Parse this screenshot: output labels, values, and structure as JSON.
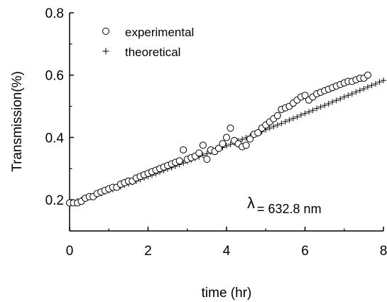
{
  "chart_data": {
    "type": "scatter",
    "xlabel": "time (hr)",
    "ylabel": "Transmission(%)",
    "xlim": [
      0,
      8
    ],
    "ylim": [
      0.1,
      0.8
    ],
    "x_ticks": [
      0,
      2,
      4,
      6,
      8
    ],
    "x_tick_labels": [
      "0",
      "2",
      "4",
      "6",
      "8"
    ],
    "y_ticks": [
      0.2,
      0.4,
      0.6,
      0.8
    ],
    "y_tick_labels": [
      "0.2",
      "0.4",
      "0.6",
      "0.8"
    ],
    "grid": false,
    "legend_position": "top-left",
    "annotation": {
      "symbol": "λ",
      "text": "= 632.8 nm"
    },
    "series": [
      {
        "name": "experimental",
        "marker": "open-circle",
        "color": "#000000",
        "points": [
          [
            0.0,
            0.19
          ],
          [
            0.1,
            0.19
          ],
          [
            0.2,
            0.19
          ],
          [
            0.3,
            0.195
          ],
          [
            0.4,
            0.205
          ],
          [
            0.5,
            0.21
          ],
          [
            0.6,
            0.21
          ],
          [
            0.7,
            0.22
          ],
          [
            0.8,
            0.225
          ],
          [
            0.9,
            0.23
          ],
          [
            1.0,
            0.235
          ],
          [
            1.1,
            0.24
          ],
          [
            1.2,
            0.24
          ],
          [
            1.3,
            0.25
          ],
          [
            1.4,
            0.255
          ],
          [
            1.5,
            0.26
          ],
          [
            1.6,
            0.26
          ],
          [
            1.7,
            0.27
          ],
          [
            1.8,
            0.275
          ],
          [
            1.9,
            0.28
          ],
          [
            2.0,
            0.285
          ],
          [
            2.1,
            0.29
          ],
          [
            2.2,
            0.295
          ],
          [
            2.3,
            0.3
          ],
          [
            2.4,
            0.305
          ],
          [
            2.5,
            0.31
          ],
          [
            2.6,
            0.315
          ],
          [
            2.7,
            0.32
          ],
          [
            2.8,
            0.325
          ],
          [
            2.9,
            0.36
          ],
          [
            3.0,
            0.33
          ],
          [
            3.1,
            0.335
          ],
          [
            3.2,
            0.34
          ],
          [
            3.3,
            0.35
          ],
          [
            3.4,
            0.375
          ],
          [
            3.5,
            0.33
          ],
          [
            3.6,
            0.36
          ],
          [
            3.7,
            0.355
          ],
          [
            3.8,
            0.365
          ],
          [
            3.9,
            0.38
          ],
          [
            4.0,
            0.4
          ],
          [
            4.1,
            0.43
          ],
          [
            4.2,
            0.39
          ],
          [
            4.3,
            0.38
          ],
          [
            4.4,
            0.37
          ],
          [
            4.5,
            0.375
          ],
          [
            4.6,
            0.395
          ],
          [
            4.7,
            0.41
          ],
          [
            4.8,
            0.415
          ],
          [
            4.9,
            0.43
          ],
          [
            5.0,
            0.44
          ],
          [
            5.1,
            0.45
          ],
          [
            5.2,
            0.46
          ],
          [
            5.3,
            0.47
          ],
          [
            5.4,
            0.49
          ],
          [
            5.5,
            0.495
          ],
          [
            5.6,
            0.5
          ],
          [
            5.7,
            0.51
          ],
          [
            5.8,
            0.52
          ],
          [
            5.9,
            0.53
          ],
          [
            6.0,
            0.535
          ],
          [
            6.1,
            0.52
          ],
          [
            6.2,
            0.53
          ],
          [
            6.3,
            0.54
          ],
          [
            6.4,
            0.545
          ],
          [
            6.5,
            0.55
          ],
          [
            6.6,
            0.555
          ],
          [
            6.7,
            0.56
          ],
          [
            6.8,
            0.565
          ],
          [
            6.9,
            0.57
          ],
          [
            7.0,
            0.575
          ],
          [
            7.1,
            0.58
          ],
          [
            7.2,
            0.58
          ],
          [
            7.3,
            0.585
          ],
          [
            7.4,
            0.59
          ],
          [
            7.5,
            0.59
          ],
          [
            7.6,
            0.6
          ]
        ]
      },
      {
        "name": "theoretical",
        "marker": "plus",
        "color": "#000000",
        "points": [
          [
            0.0,
            0.19
          ],
          [
            0.1,
            0.193
          ],
          [
            0.2,
            0.197
          ],
          [
            0.3,
            0.2
          ],
          [
            0.4,
            0.204
          ],
          [
            0.5,
            0.208
          ],
          [
            0.6,
            0.212
          ],
          [
            0.7,
            0.216
          ],
          [
            0.8,
            0.22
          ],
          [
            0.9,
            0.225
          ],
          [
            1.0,
            0.229
          ],
          [
            1.1,
            0.233
          ],
          [
            1.2,
            0.238
          ],
          [
            1.3,
            0.242
          ],
          [
            1.4,
            0.247
          ],
          [
            1.5,
            0.251
          ],
          [
            1.6,
            0.256
          ],
          [
            1.7,
            0.26
          ],
          [
            1.8,
            0.265
          ],
          [
            1.9,
            0.27
          ],
          [
            2.0,
            0.275
          ],
          [
            2.1,
            0.279
          ],
          [
            2.2,
            0.284
          ],
          [
            2.3,
            0.289
          ],
          [
            2.4,
            0.294
          ],
          [
            2.5,
            0.299
          ],
          [
            2.6,
            0.303
          ],
          [
            2.7,
            0.308
          ],
          [
            2.8,
            0.313
          ],
          [
            2.9,
            0.318
          ],
          [
            3.0,
            0.323
          ],
          [
            3.1,
            0.328
          ],
          [
            3.2,
            0.333
          ],
          [
            3.3,
            0.338
          ],
          [
            3.4,
            0.343
          ],
          [
            3.5,
            0.348
          ],
          [
            3.6,
            0.353
          ],
          [
            3.7,
            0.358
          ],
          [
            3.8,
            0.363
          ],
          [
            3.9,
            0.368
          ],
          [
            4.0,
            0.373
          ],
          [
            4.1,
            0.378
          ],
          [
            4.2,
            0.383
          ],
          [
            4.3,
            0.389
          ],
          [
            4.4,
            0.394
          ],
          [
            4.5,
            0.399
          ],
          [
            4.6,
            0.404
          ],
          [
            4.7,
            0.409
          ],
          [
            4.8,
            0.414
          ],
          [
            4.9,
            0.419
          ],
          [
            5.0,
            0.425
          ],
          [
            5.1,
            0.43
          ],
          [
            5.2,
            0.435
          ],
          [
            5.3,
            0.44
          ],
          [
            5.4,
            0.445
          ],
          [
            5.5,
            0.451
          ],
          [
            5.6,
            0.456
          ],
          [
            5.7,
            0.461
          ],
          [
            5.8,
            0.466
          ],
          [
            5.9,
            0.472
          ],
          [
            6.0,
            0.477
          ],
          [
            6.1,
            0.482
          ],
          [
            6.2,
            0.487
          ],
          [
            6.3,
            0.493
          ],
          [
            6.4,
            0.498
          ],
          [
            6.5,
            0.503
          ],
          [
            6.6,
            0.508
          ],
          [
            6.7,
            0.514
          ],
          [
            6.8,
            0.519
          ],
          [
            6.9,
            0.524
          ],
          [
            7.0,
            0.53
          ],
          [
            7.1,
            0.535
          ],
          [
            7.2,
            0.54
          ],
          [
            7.3,
            0.546
          ],
          [
            7.4,
            0.551
          ],
          [
            7.5,
            0.556
          ],
          [
            7.6,
            0.562
          ],
          [
            7.7,
            0.567
          ],
          [
            7.8,
            0.572
          ],
          [
            7.9,
            0.578
          ],
          [
            8.0,
            0.583
          ]
        ]
      }
    ]
  }
}
